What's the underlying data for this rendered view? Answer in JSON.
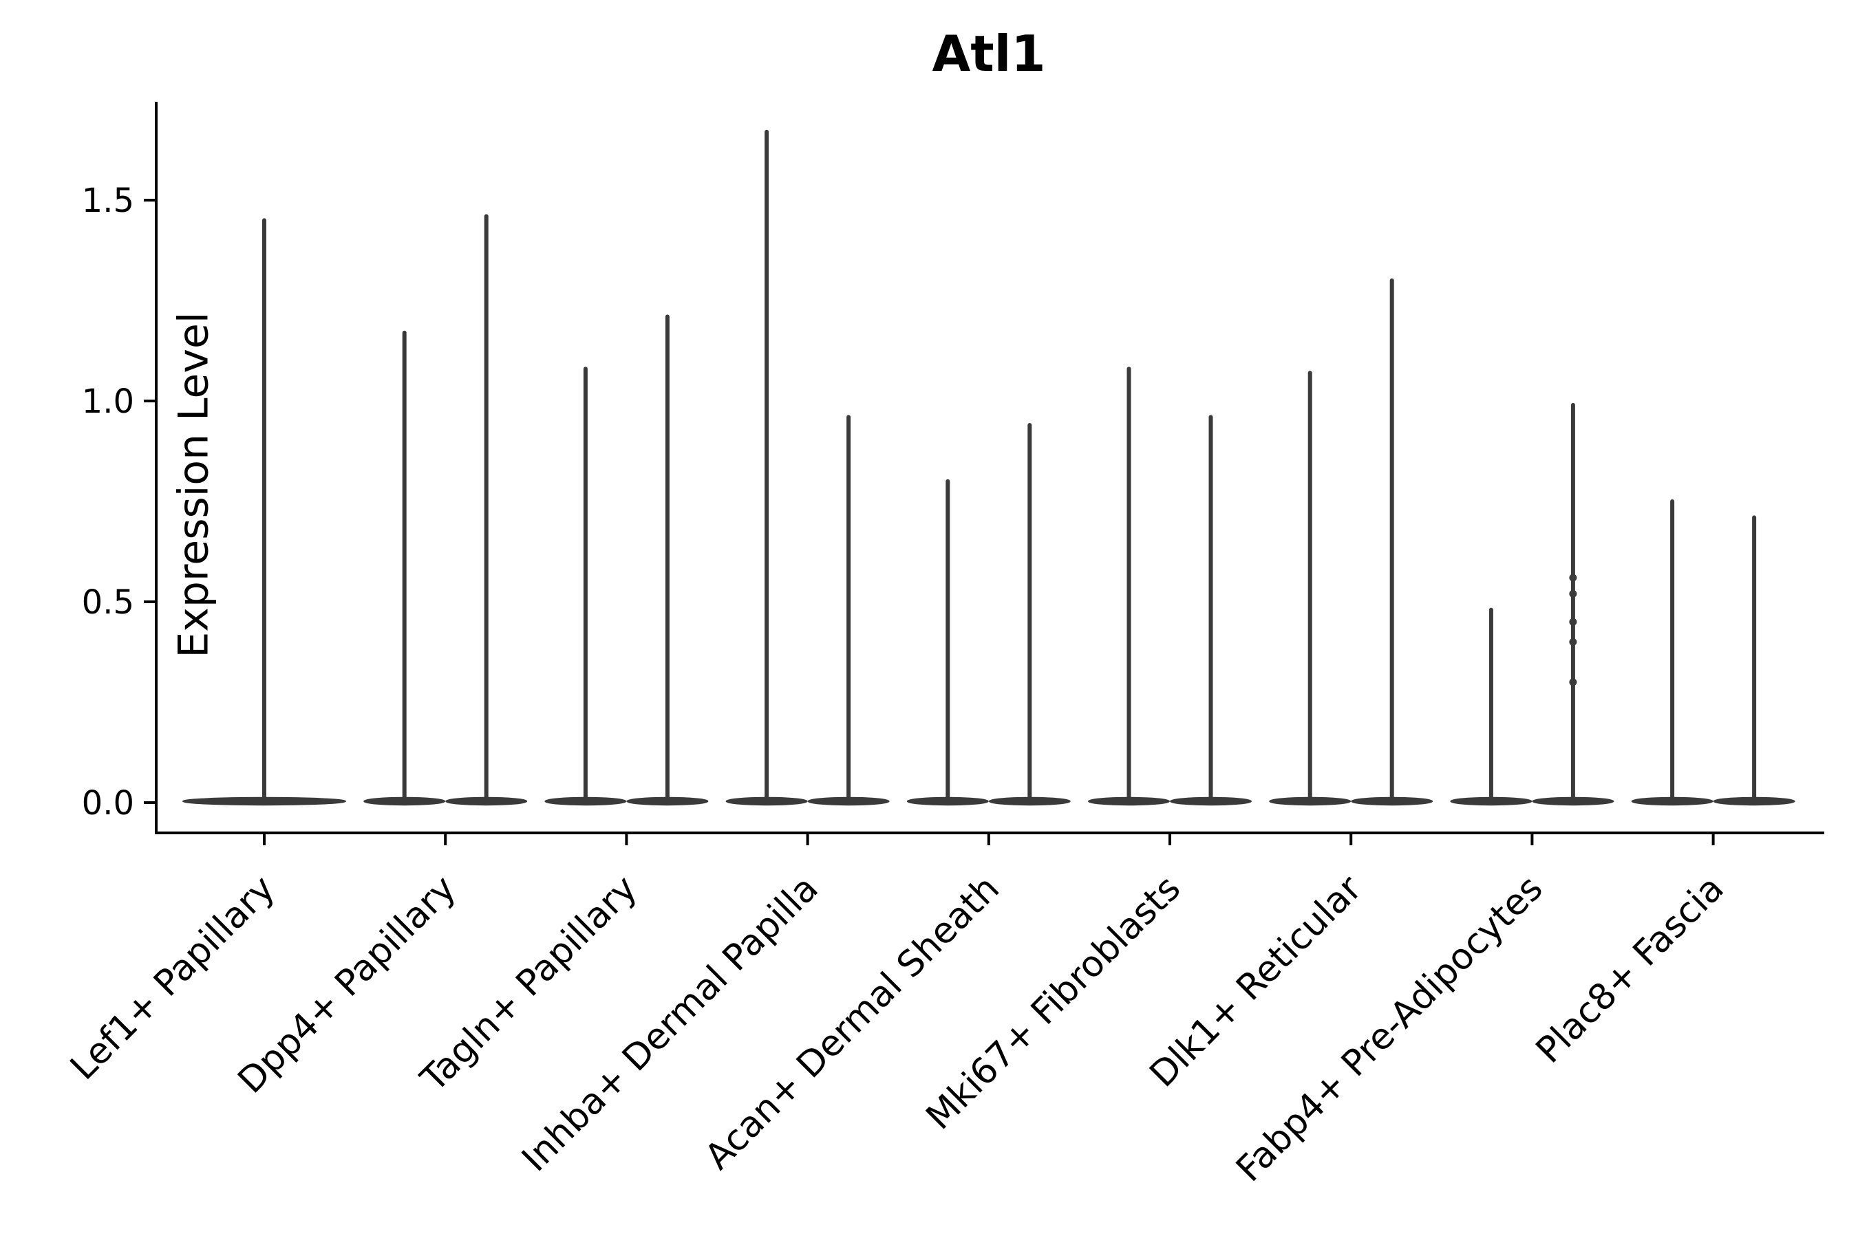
{
  "title": "Atl1",
  "ylabel": "Expression Level",
  "chart_data": {
    "type": "violin",
    "title": "Atl1",
    "xlabel": "",
    "ylabel": "Expression Level",
    "ylim": [
      0,
      1.75
    ],
    "yticks": [
      0.0,
      0.5,
      1.0,
      1.5
    ],
    "ytick_labels": [
      "0.0",
      "0.5",
      "1.0",
      "1.5"
    ],
    "grid": false,
    "legend": "none",
    "violin_color": "#3a3a3a",
    "axis_color": "#000000",
    "description": "Each violin is flat at 0 expression with a thin spike up to its maximum value; most categories contain two side-by-side violins.",
    "categories": [
      {
        "label": "Lef1+ Papillary",
        "violins": [
          {
            "pos": "center",
            "max": 1.45,
            "dots": []
          }
        ]
      },
      {
        "label": "Dpp4+ Papillary",
        "violins": [
          {
            "pos": "left",
            "max": 1.17,
            "dots": []
          },
          {
            "pos": "right",
            "max": 1.46,
            "dots": []
          }
        ]
      },
      {
        "label": "Tagln+ Papillary",
        "violins": [
          {
            "pos": "left",
            "max": 1.08,
            "dots": []
          },
          {
            "pos": "right",
            "max": 1.21,
            "dots": []
          }
        ]
      },
      {
        "label": "Inhba+ Dermal Papilla",
        "violins": [
          {
            "pos": "left",
            "max": 1.67,
            "dots": []
          },
          {
            "pos": "right",
            "max": 0.96,
            "dots": []
          }
        ]
      },
      {
        "label": "Acan+ Dermal Sheath",
        "violins": [
          {
            "pos": "left",
            "max": 0.8,
            "dots": []
          },
          {
            "pos": "right",
            "max": 0.94,
            "dots": []
          }
        ]
      },
      {
        "label": "Mki67+ Fibroblasts",
        "violins": [
          {
            "pos": "left",
            "max": 1.08,
            "dots": []
          },
          {
            "pos": "right",
            "max": 0.96,
            "dots": []
          }
        ]
      },
      {
        "label": "Dlk1+ Reticular",
        "violins": [
          {
            "pos": "left",
            "max": 1.07,
            "dots": []
          },
          {
            "pos": "right",
            "max": 1.3,
            "dots": []
          }
        ]
      },
      {
        "label": "Fabp4+ Pre-Adipocytes",
        "violins": [
          {
            "pos": "left",
            "max": 0.48,
            "dots": []
          },
          {
            "pos": "right",
            "max": 0.99,
            "dots": [
              0.56,
              0.52,
              0.45,
              0.4,
              0.3
            ]
          }
        ]
      },
      {
        "label": "Plac8+ Fascia",
        "violins": [
          {
            "pos": "left",
            "max": 0.75,
            "dots": []
          },
          {
            "pos": "right",
            "max": 0.71,
            "dots": []
          }
        ]
      }
    ]
  }
}
